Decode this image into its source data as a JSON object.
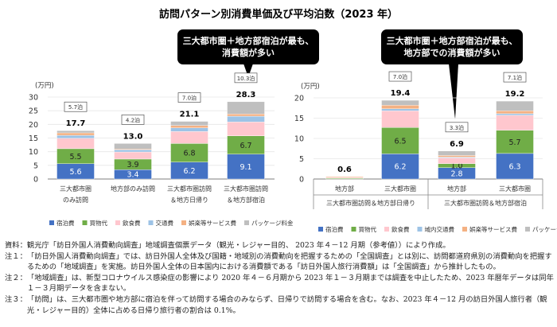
{
  "title": "訪問パターン別消費単価及び平均泊数（2023 年）",
  "callouts": [
    "三大都市圏＋地方部宿泊が最も、\n消費額が多い",
    "三大都市圏＋地方部宿泊が最も、\n地方部での消費額が多い"
  ],
  "colors": {
    "宿泊費": "#4472c4",
    "買物代": "#70ad47",
    "飲食費": "#ffc7ce",
    "交通費": "#9dc3e6",
    "娯楽等サービス費": "#f4b183",
    "パッケージ料金": "#bfbfbf"
  },
  "chart_data": [
    {
      "type": "bar",
      "stacked": true,
      "ylabel": "(万円)",
      "ylim": [
        0,
        30
      ],
      "yticks": [
        0,
        5,
        10,
        15,
        20,
        25,
        30
      ],
      "grid": true,
      "legend": "bottom",
      "categories": [
        "三大都市圏\nのみ訪問",
        "地方部のみ訪問",
        "三大都市圏訪問\n＆地方日帰り",
        "三大都市圏訪問\n＆地方部宿泊"
      ],
      "totals": [
        "17.7",
        "13.0",
        "21.1",
        "28.3"
      ],
      "nights": [
        "5.7泊",
        "4.2泊",
        "7.0泊",
        "10.3泊"
      ],
      "series": [
        {
          "name": "宿泊費",
          "values": [
            5.6,
            3.4,
            6.2,
            9.1
          ],
          "labels": [
            "5.6",
            "3.4",
            "6.2",
            "9.1"
          ]
        },
        {
          "name": "買物代",
          "values": [
            5.5,
            3.9,
            6.8,
            6.7
          ],
          "labels": [
            "5.5",
            "3.9",
            "6.8",
            "6.7"
          ]
        },
        {
          "name": "飲食費",
          "values": [
            3.8,
            2.6,
            4.4,
            5.1
          ]
        },
        {
          "name": "交通費",
          "values": [
            1.1,
            0.8,
            1.3,
            2.1
          ]
        },
        {
          "name": "娯楽等サービス費",
          "values": [
            0.9,
            0.3,
            0.9,
            0.8
          ]
        },
        {
          "name": "パッケージ料金",
          "values": [
            0.8,
            2.0,
            1.5,
            4.5
          ]
        }
      ]
    },
    {
      "type": "bar",
      "stacked": true,
      "ylabel": "(万円)",
      "ylim": [
        0,
        20
      ],
      "yticks": [
        0,
        5,
        10,
        15,
        20
      ],
      "grid": true,
      "legend": "bottom",
      "categories": [
        "地方部",
        "三大都市圏",
        "地方部",
        "三大都市圏"
      ],
      "groups": [
        "三大都市圏訪問＆地方部日帰り",
        "三大都市圏訪問＆地方部宿泊"
      ],
      "totals": [
        "0.6",
        "19.4",
        "6.9",
        "19.2"
      ],
      "nights": [
        "",
        "7.0泊",
        "3.3泊",
        "7.1泊"
      ],
      "series": [
        {
          "name": "宿泊費",
          "values": [
            0,
            6.2,
            2.8,
            6.3
          ],
          "labels": [
            "",
            "6.2",
            "2.8",
            "6.3"
          ]
        },
        {
          "name": "買物代",
          "values": [
            0.2,
            6.5,
            1.0,
            5.7
          ],
          "labels": [
            "",
            "6.5",
            "1.0",
            "5.7"
          ]
        },
        {
          "name": "飲食費",
          "values": [
            0.2,
            4.1,
            1.4,
            3.7
          ]
        },
        {
          "name": "域内交通費",
          "values": [
            0,
            0.5,
            0.2,
            0.4
          ]
        },
        {
          "name": "娯楽等サービス費",
          "values": [
            0.2,
            0.9,
            0.4,
            0.7
          ]
        },
        {
          "name": "パッケージ料金",
          "values": [
            0,
            1.2,
            1.1,
            2.4
          ]
        }
      ]
    }
  ],
  "notes": [
    {
      "label": "資料：",
      "text": "観光庁「訪日外国人消費動向調査」地域調査個票データ（観光・レジャー目的、 2023 年４－12 月期（参考値））により作成。"
    },
    {
      "label": "注１：",
      "text": "「訪日外国人消費動向調査」では、訪日外国人全体及び国籍・地域別の消費動向を把握するための「全国調査」とは別に、訪問都道府県別の消費動向を把握するための「地域調査」を実施。訪日外国人全体の日本国内における消費額である「訪日外国人旅行消費額」は「全国調査」から推計したもの。"
    },
    {
      "label": "注２：",
      "text": "「地域調査」は、新型コロナウイルス感染症の影響により 2020 年４－６月期から 2023 年１－３月期までは調査を中止したため、2023 年暦年データは同年１－３月期データを含まない。"
    },
    {
      "label": "注３：",
      "text": "「訪問」は、三大都市圏や地方部に宿泊を伴って訪問する場合のみならず、日帰りで訪問する場合を含む。なお、2023 年４－12 月の訪日外国人旅行者（観光・レジャー目的）全体に占める日帰り旅行者の割合は 0.1%。"
    }
  ]
}
